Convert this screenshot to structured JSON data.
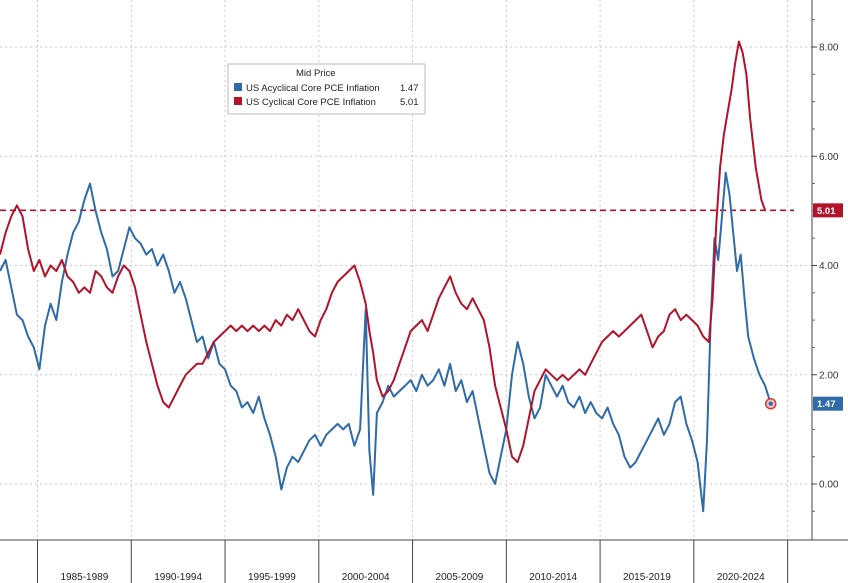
{
  "chart_data": {
    "type": "line",
    "title": "",
    "xlabel": "",
    "ylabel": "",
    "ylim": [
      -1.0,
      8.8
    ],
    "x_range": [
      1983.0,
      2026.3
    ],
    "y_ticks": [
      "8.00",
      "6.00",
      "4.00",
      "2.00",
      "0.00"
    ],
    "x_categories": [
      "1985-1989",
      "1990-1994",
      "1995-1999",
      "2000-2004",
      "2005-2009",
      "2010-2014",
      "2015-2019",
      "2020-2024"
    ],
    "grid": true,
    "legend": {
      "title": "Mid Price",
      "placement": "top-left"
    },
    "reference_line": {
      "value": 5.01,
      "color": "#b3122b",
      "style": "dashed"
    },
    "series": [
      {
        "name": "US Acyclical Core PCE Inflation",
        "last_value": "1.47",
        "color": "#2e6ba8",
        "points": [
          [
            1983.0,
            3.9
          ],
          [
            1983.3,
            4.1
          ],
          [
            1983.6,
            3.6
          ],
          [
            1983.9,
            3.1
          ],
          [
            1984.2,
            3.0
          ],
          [
            1984.5,
            2.7
          ],
          [
            1984.8,
            2.5
          ],
          [
            1985.1,
            2.1
          ],
          [
            1985.4,
            2.9
          ],
          [
            1985.7,
            3.3
          ],
          [
            1986.0,
            3.0
          ],
          [
            1986.3,
            3.7
          ],
          [
            1986.6,
            4.2
          ],
          [
            1986.9,
            4.6
          ],
          [
            1987.2,
            4.8
          ],
          [
            1987.5,
            5.2
          ],
          [
            1987.8,
            5.5
          ],
          [
            1988.1,
            5.0
          ],
          [
            1988.4,
            4.6
          ],
          [
            1988.7,
            4.3
          ],
          [
            1989.0,
            3.8
          ],
          [
            1989.3,
            3.9
          ],
          [
            1989.6,
            4.3
          ],
          [
            1989.9,
            4.7
          ],
          [
            1990.2,
            4.5
          ],
          [
            1990.5,
            4.4
          ],
          [
            1990.8,
            4.2
          ],
          [
            1991.1,
            4.3
          ],
          [
            1991.4,
            4.0
          ],
          [
            1991.7,
            4.2
          ],
          [
            1992.0,
            3.9
          ],
          [
            1992.3,
            3.5
          ],
          [
            1992.6,
            3.7
          ],
          [
            1992.9,
            3.4
          ],
          [
            1993.2,
            3.0
          ],
          [
            1993.5,
            2.6
          ],
          [
            1993.8,
            2.7
          ],
          [
            1994.1,
            2.3
          ],
          [
            1994.4,
            2.6
          ],
          [
            1994.7,
            2.2
          ],
          [
            1995.0,
            2.1
          ],
          [
            1995.3,
            1.8
          ],
          [
            1995.6,
            1.7
          ],
          [
            1995.9,
            1.4
          ],
          [
            1996.2,
            1.5
          ],
          [
            1996.5,
            1.3
          ],
          [
            1996.8,
            1.6
          ],
          [
            1997.1,
            1.2
          ],
          [
            1997.4,
            0.9
          ],
          [
            1997.7,
            0.5
          ],
          [
            1998.0,
            -0.1
          ],
          [
            1998.3,
            0.3
          ],
          [
            1998.6,
            0.5
          ],
          [
            1998.9,
            0.4
          ],
          [
            1999.2,
            0.6
          ],
          [
            1999.5,
            0.8
          ],
          [
            1999.8,
            0.9
          ],
          [
            2000.1,
            0.7
          ],
          [
            2000.4,
            0.9
          ],
          [
            2000.7,
            1.0
          ],
          [
            2001.0,
            1.1
          ],
          [
            2001.3,
            1.0
          ],
          [
            2001.6,
            1.1
          ],
          [
            2001.9,
            0.7
          ],
          [
            2002.2,
            1.0
          ],
          [
            2002.5,
            3.2
          ],
          [
            2002.7,
            0.6
          ],
          [
            2002.9,
            -0.2
          ],
          [
            2003.1,
            1.3
          ],
          [
            2003.4,
            1.5
          ],
          [
            2003.7,
            1.8
          ],
          [
            2004.0,
            1.6
          ],
          [
            2004.3,
            1.7
          ],
          [
            2004.6,
            1.8
          ],
          [
            2004.9,
            1.9
          ],
          [
            2005.2,
            1.7
          ],
          [
            2005.5,
            2.0
          ],
          [
            2005.8,
            1.8
          ],
          [
            2006.1,
            1.9
          ],
          [
            2006.4,
            2.1
          ],
          [
            2006.7,
            1.8
          ],
          [
            2007.0,
            2.2
          ],
          [
            2007.3,
            1.7
          ],
          [
            2007.6,
            1.9
          ],
          [
            2007.9,
            1.5
          ],
          [
            2008.2,
            1.7
          ],
          [
            2008.5,
            1.2
          ],
          [
            2008.8,
            0.7
          ],
          [
            2009.1,
            0.2
          ],
          [
            2009.4,
            0.0
          ],
          [
            2009.7,
            0.5
          ],
          [
            2010.0,
            1.0
          ],
          [
            2010.3,
            2.0
          ],
          [
            2010.6,
            2.6
          ],
          [
            2010.9,
            2.2
          ],
          [
            2011.2,
            1.6
          ],
          [
            2011.5,
            1.2
          ],
          [
            2011.8,
            1.4
          ],
          [
            2012.1,
            2.0
          ],
          [
            2012.4,
            1.8
          ],
          [
            2012.7,
            1.6
          ],
          [
            2013.0,
            1.8
          ],
          [
            2013.3,
            1.5
          ],
          [
            2013.6,
            1.4
          ],
          [
            2013.9,
            1.6
          ],
          [
            2014.2,
            1.3
          ],
          [
            2014.5,
            1.5
          ],
          [
            2014.8,
            1.3
          ],
          [
            2015.1,
            1.2
          ],
          [
            2015.4,
            1.4
          ],
          [
            2015.7,
            1.1
          ],
          [
            2016.0,
            0.9
          ],
          [
            2016.3,
            0.5
          ],
          [
            2016.6,
            0.3
          ],
          [
            2016.9,
            0.4
          ],
          [
            2017.2,
            0.6
          ],
          [
            2017.5,
            0.8
          ],
          [
            2017.8,
            1.0
          ],
          [
            2018.1,
            1.2
          ],
          [
            2018.4,
            0.9
          ],
          [
            2018.7,
            1.1
          ],
          [
            2019.0,
            1.5
          ],
          [
            2019.3,
            1.6
          ],
          [
            2019.6,
            1.1
          ],
          [
            2019.9,
            0.8
          ],
          [
            2020.2,
            0.4
          ],
          [
            2020.5,
            -0.5
          ],
          [
            2020.7,
            0.8
          ],
          [
            2020.9,
            3.0
          ],
          [
            2021.1,
            4.5
          ],
          [
            2021.3,
            4.1
          ],
          [
            2021.5,
            4.9
          ],
          [
            2021.7,
            5.7
          ],
          [
            2021.9,
            5.3
          ],
          [
            2022.1,
            4.6
          ],
          [
            2022.3,
            3.9
          ],
          [
            2022.5,
            4.2
          ],
          [
            2022.7,
            3.4
          ],
          [
            2022.9,
            2.7
          ],
          [
            2023.2,
            2.3
          ],
          [
            2023.5,
            2.0
          ],
          [
            2023.8,
            1.8
          ],
          [
            2024.1,
            1.47
          ]
        ]
      },
      {
        "name": "US Cyclical Core PCE Inflation",
        "last_value": "5.01",
        "color": "#b3122b",
        "points": [
          [
            1983.0,
            4.2
          ],
          [
            1983.3,
            4.6
          ],
          [
            1983.6,
            4.9
          ],
          [
            1983.9,
            5.1
          ],
          [
            1984.2,
            4.9
          ],
          [
            1984.5,
            4.3
          ],
          [
            1984.8,
            3.9
          ],
          [
            1985.1,
            4.1
          ],
          [
            1985.4,
            3.8
          ],
          [
            1985.7,
            4.0
          ],
          [
            1986.0,
            3.9
          ],
          [
            1986.3,
            4.1
          ],
          [
            1986.6,
            3.8
          ],
          [
            1986.9,
            3.7
          ],
          [
            1987.2,
            3.5
          ],
          [
            1987.5,
            3.6
          ],
          [
            1987.8,
            3.5
          ],
          [
            1988.1,
            3.9
          ],
          [
            1988.4,
            3.8
          ],
          [
            1988.7,
            3.6
          ],
          [
            1989.0,
            3.5
          ],
          [
            1989.3,
            3.8
          ],
          [
            1989.6,
            4.0
          ],
          [
            1989.9,
            3.9
          ],
          [
            1990.2,
            3.6
          ],
          [
            1990.5,
            3.1
          ],
          [
            1990.8,
            2.6
          ],
          [
            1991.1,
            2.2
          ],
          [
            1991.4,
            1.8
          ],
          [
            1991.7,
            1.5
          ],
          [
            1992.0,
            1.4
          ],
          [
            1992.3,
            1.6
          ],
          [
            1992.6,
            1.8
          ],
          [
            1992.9,
            2.0
          ],
          [
            1993.2,
            2.1
          ],
          [
            1993.5,
            2.2
          ],
          [
            1993.8,
            2.2
          ],
          [
            1994.1,
            2.4
          ],
          [
            1994.4,
            2.6
          ],
          [
            1994.7,
            2.7
          ],
          [
            1995.0,
            2.8
          ],
          [
            1995.3,
            2.9
          ],
          [
            1995.6,
            2.8
          ],
          [
            1995.9,
            2.9
          ],
          [
            1996.2,
            2.8
          ],
          [
            1996.5,
            2.9
          ],
          [
            1996.8,
            2.8
          ],
          [
            1997.1,
            2.9
          ],
          [
            1997.4,
            2.8
          ],
          [
            1997.7,
            3.0
          ],
          [
            1998.0,
            2.9
          ],
          [
            1998.3,
            3.1
          ],
          [
            1998.6,
            3.0
          ],
          [
            1998.9,
            3.2
          ],
          [
            1999.2,
            3.0
          ],
          [
            1999.5,
            2.8
          ],
          [
            1999.8,
            2.7
          ],
          [
            2000.1,
            3.0
          ],
          [
            2000.4,
            3.2
          ],
          [
            2000.7,
            3.5
          ],
          [
            2001.0,
            3.7
          ],
          [
            2001.3,
            3.8
          ],
          [
            2001.6,
            3.9
          ],
          [
            2001.9,
            4.0
          ],
          [
            2002.2,
            3.7
          ],
          [
            2002.5,
            3.3
          ],
          [
            2002.7,
            2.8
          ],
          [
            2002.9,
            2.4
          ],
          [
            2003.1,
            1.9
          ],
          [
            2003.4,
            1.6
          ],
          [
            2003.7,
            1.7
          ],
          [
            2004.0,
            1.9
          ],
          [
            2004.3,
            2.2
          ],
          [
            2004.6,
            2.5
          ],
          [
            2004.9,
            2.8
          ],
          [
            2005.2,
            2.9
          ],
          [
            2005.5,
            3.0
          ],
          [
            2005.8,
            2.8
          ],
          [
            2006.1,
            3.1
          ],
          [
            2006.4,
            3.4
          ],
          [
            2006.7,
            3.6
          ],
          [
            2007.0,
            3.8
          ],
          [
            2007.3,
            3.5
          ],
          [
            2007.6,
            3.3
          ],
          [
            2007.9,
            3.2
          ],
          [
            2008.2,
            3.4
          ],
          [
            2008.5,
            3.2
          ],
          [
            2008.8,
            3.0
          ],
          [
            2009.1,
            2.5
          ],
          [
            2009.4,
            1.8
          ],
          [
            2009.7,
            1.4
          ],
          [
            2010.0,
            1.0
          ],
          [
            2010.3,
            0.5
          ],
          [
            2010.6,
            0.4
          ],
          [
            2010.9,
            0.7
          ],
          [
            2011.2,
            1.2
          ],
          [
            2011.5,
            1.7
          ],
          [
            2011.8,
            1.9
          ],
          [
            2012.1,
            2.1
          ],
          [
            2012.4,
            2.0
          ],
          [
            2012.7,
            1.9
          ],
          [
            2013.0,
            2.0
          ],
          [
            2013.3,
            1.9
          ],
          [
            2013.6,
            2.0
          ],
          [
            2013.9,
            2.1
          ],
          [
            2014.2,
            2.0
          ],
          [
            2014.5,
            2.2
          ],
          [
            2014.8,
            2.4
          ],
          [
            2015.1,
            2.6
          ],
          [
            2015.4,
            2.7
          ],
          [
            2015.7,
            2.8
          ],
          [
            2016.0,
            2.7
          ],
          [
            2016.3,
            2.8
          ],
          [
            2016.6,
            2.9
          ],
          [
            2016.9,
            3.0
          ],
          [
            2017.2,
            3.1
          ],
          [
            2017.5,
            2.8
          ],
          [
            2017.8,
            2.5
          ],
          [
            2018.1,
            2.7
          ],
          [
            2018.4,
            2.8
          ],
          [
            2018.7,
            3.1
          ],
          [
            2019.0,
            3.2
          ],
          [
            2019.3,
            3.0
          ],
          [
            2019.6,
            3.1
          ],
          [
            2019.9,
            3.0
          ],
          [
            2020.2,
            2.9
          ],
          [
            2020.5,
            2.7
          ],
          [
            2020.8,
            2.6
          ],
          [
            2021.0,
            3.4
          ],
          [
            2021.2,
            4.8
          ],
          [
            2021.4,
            5.8
          ],
          [
            2021.6,
            6.4
          ],
          [
            2021.8,
            6.8
          ],
          [
            2022.0,
            7.2
          ],
          [
            2022.2,
            7.7
          ],
          [
            2022.4,
            8.1
          ],
          [
            2022.6,
            7.9
          ],
          [
            2022.8,
            7.5
          ],
          [
            2023.0,
            6.7
          ],
          [
            2023.3,
            5.8
          ],
          [
            2023.6,
            5.2
          ],
          [
            2023.8,
            5.01
          ]
        ]
      }
    ]
  }
}
